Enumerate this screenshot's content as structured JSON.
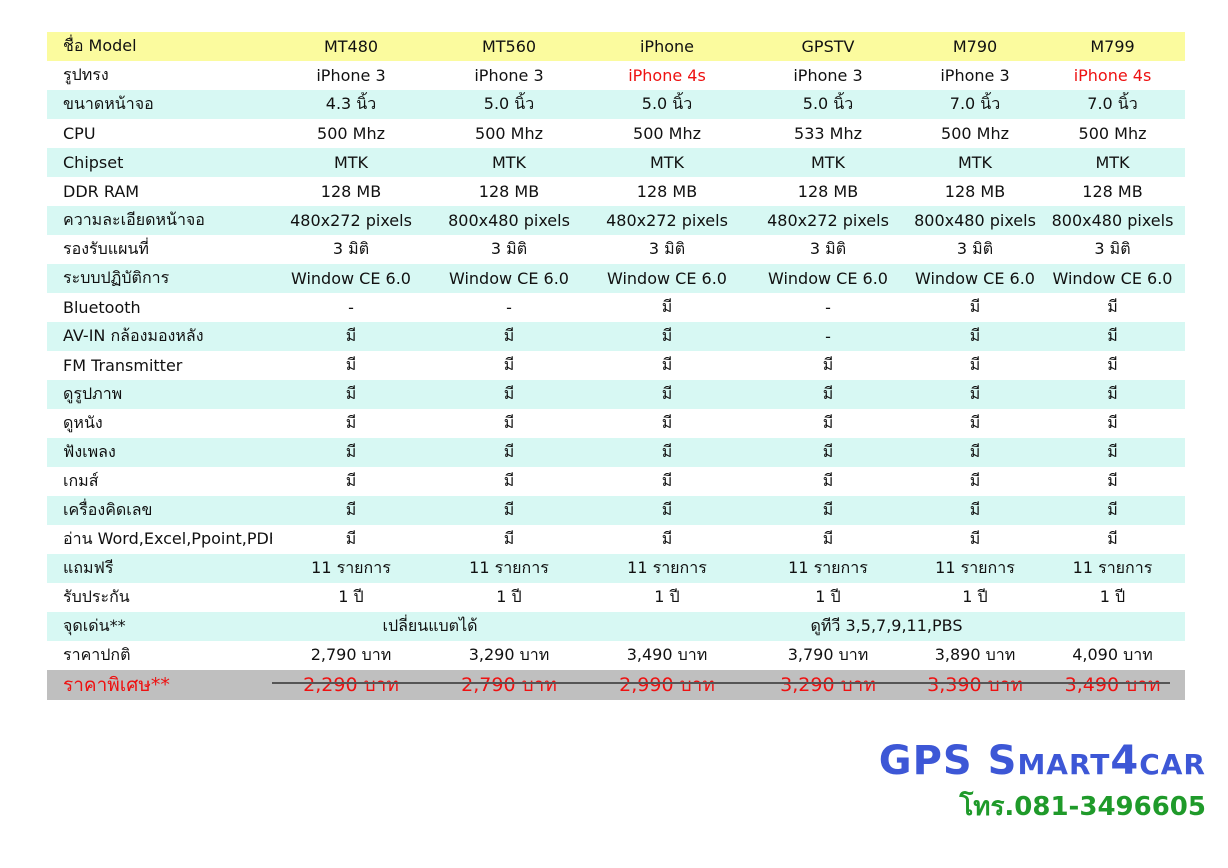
{
  "table": {
    "header": {
      "label": "ชื่อ Model",
      "models": [
        "MT480",
        "MT560",
        "iPhone",
        "GPSTV",
        "M790",
        "M799"
      ]
    },
    "rows": [
      {
        "label": "รูปทรง",
        "values": [
          "iPhone 3",
          "iPhone 3",
          "iPhone 4s",
          "iPhone 3",
          "iPhone 3",
          "iPhone 4s"
        ]
      },
      {
        "label": "ขนาดหน้าจอ",
        "values": [
          "4.3 นิ้ว",
          "5.0 นิ้ว",
          "5.0 นิ้ว",
          "5.0 นิ้ว",
          "7.0 นิ้ว",
          "7.0 นิ้ว"
        ]
      },
      {
        "label": "CPU",
        "values": [
          "500 Mhz",
          "500 Mhz",
          "500 Mhz",
          "533 Mhz",
          "500 Mhz",
          "500 Mhz"
        ]
      },
      {
        "label": "Chipset",
        "values": [
          "MTK",
          "MTK",
          "MTK",
          "MTK",
          "MTK",
          "MTK"
        ]
      },
      {
        "label": "DDR RAM",
        "values": [
          "128 MB",
          "128 MB",
          "128 MB",
          "128 MB",
          "128 MB",
          "128 MB"
        ]
      },
      {
        "label": "ความละเอียดหน้าจอ",
        "values": [
          "480x272 pixels",
          "800x480 pixels",
          "480x272 pixels",
          "480x272 pixels",
          "800x480 pixels",
          "800x480 pixels"
        ]
      },
      {
        "label": "รองรับแผนที่",
        "values": [
          "3 มิติ",
          "3 มิติ",
          "3 มิติ",
          "3 มิติ",
          "3 มิติ",
          "3 มิติ"
        ]
      },
      {
        "label": "ระบบปฏิบัติการ",
        "values": [
          "Window CE 6.0",
          "Window CE 6.0",
          "Window CE 6.0",
          "Window CE 6.0",
          "Window CE 6.0",
          "Window CE 6.0"
        ]
      },
      {
        "label": "Bluetooth",
        "values": [
          "-",
          "-",
          "มี",
          "-",
          "มี",
          "มี"
        ]
      },
      {
        "label": "AV-IN กล้องมองหลัง",
        "values": [
          "มี",
          "มี",
          "มี",
          "-",
          "มี",
          "มี"
        ]
      },
      {
        "label": "FM Transmitter",
        "values": [
          "มี",
          "มี",
          "มี",
          "มี",
          "มี",
          "มี"
        ]
      },
      {
        "label": "ดูรูปภาพ",
        "values": [
          "มี",
          "มี",
          "มี",
          "มี",
          "มี",
          "มี"
        ]
      },
      {
        "label": "ดูหนัง",
        "values": [
          "มี",
          "มี",
          "มี",
          "มี",
          "มี",
          "มี"
        ]
      },
      {
        "label": "ฟังเพลง",
        "values": [
          "มี",
          "มี",
          "มี",
          "มี",
          "มี",
          "มี"
        ]
      },
      {
        "label": "เกมส์",
        "values": [
          "มี",
          "มี",
          "มี",
          "มี",
          "มี",
          "มี"
        ]
      },
      {
        "label": "เครื่องคิดเลข",
        "values": [
          "มี",
          "มี",
          "มี",
          "มี",
          "มี",
          "มี"
        ]
      },
      {
        "label": "อ่าน Word,Excel,Ppoint,PDF",
        "values": [
          "มี",
          "มี",
          "มี",
          "มี",
          "มี",
          "มี"
        ]
      },
      {
        "label": "แถมฟรี",
        "values": [
          "11 รายการ",
          "11 รายการ",
          "11 รายการ",
          "11 รายการ",
          "11 รายการ",
          "11 รายการ"
        ]
      },
      {
        "label": "รับประกัน",
        "values": [
          "1 ปี",
          "1 ปี",
          "1 ปี",
          "1 ปี",
          "1 ปี",
          "1 ปี"
        ]
      }
    ],
    "highlight": {
      "label": "จุดเด่น**",
      "battery": "เปลี่ยนแบตได้",
      "tv": "ดูทีวี 3,5,7,9,11,PBS"
    },
    "regular_price": {
      "label": "ราคาปกติ",
      "values": [
        "2,790 บาท",
        "3,290 บาท",
        "3,490 บาท",
        "3,790 บาท",
        "3,890 บาท",
        "4,090 บาท"
      ]
    },
    "special_price": {
      "label": "ราคาพิเศษ**",
      "values": [
        "2,290 บาท",
        "2,790 บาท",
        "2,990 บาท",
        "3,290 บาท",
        "3,390 บาท",
        "3,490 บาท"
      ]
    }
  },
  "footer": {
    "brand": "GPS Smart4car",
    "phone": "โทร.081-3496605"
  },
  "colors": {
    "yellow_row": "#fbfb9e",
    "cyan_row": "#d7f8f3",
    "special_row": "#bfbfbf",
    "red_text": "#ee1111",
    "brand_blue": "#3d57d6",
    "phone_green": "#1f9a2a"
  }
}
